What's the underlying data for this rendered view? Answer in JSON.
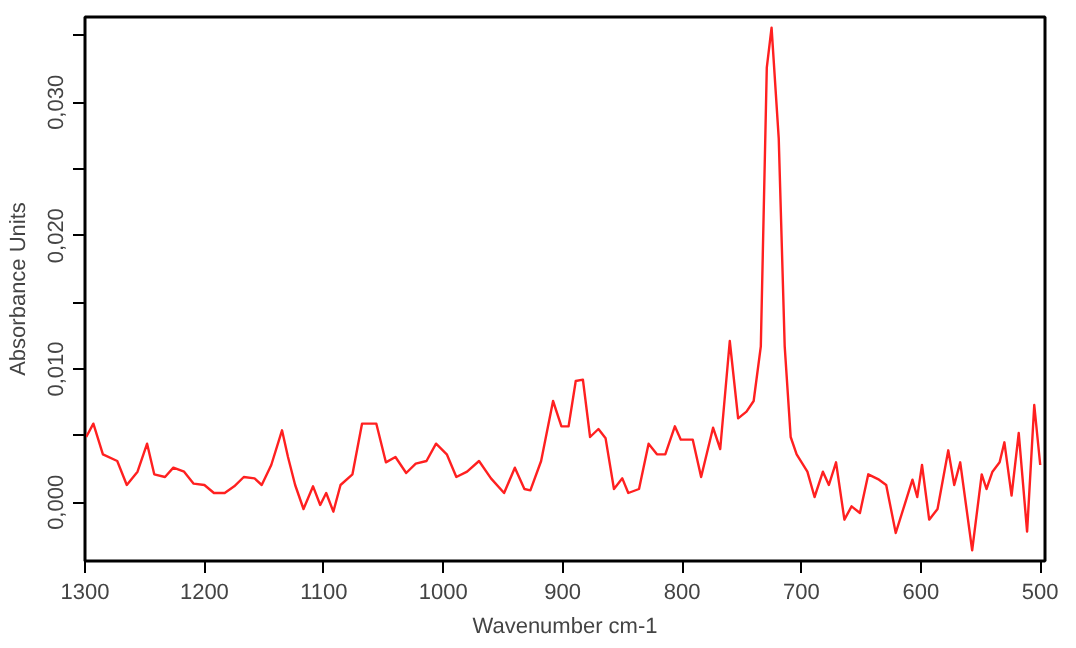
{
  "chart_data": {
    "type": "line",
    "xlabel": "Wavenumber cm-1",
    "ylabel": "Absorbance Units",
    "xlim": [
      1300,
      496
    ],
    "xticks": [
      1300,
      1200,
      1100,
      1000,
      900,
      800,
      700,
      600,
      500
    ],
    "ylim": [
      -0.0044,
      0.0364
    ],
    "yticks": [
      {
        "value": 0,
        "label": "0,000"
      },
      {
        "value": 0.005,
        "label": null
      },
      {
        "value": 0.01,
        "label": "0,010"
      },
      {
        "value": 0.015,
        "label": null
      },
      {
        "value": 0.02,
        "label": "0,020"
      },
      {
        "value": 0.025,
        "label": null
      },
      {
        "value": 0.03,
        "label": "0,030"
      },
      {
        "value": 0.035,
        "label": null
      }
    ],
    "grid": false,
    "series": [
      {
        "color": "#ff2020",
        "x": [
          1299,
          1293,
          1285,
          1273,
          1265,
          1256,
          1248,
          1242,
          1233,
          1226,
          1217,
          1209,
          1200,
          1192,
          1183,
          1175,
          1167,
          1158,
          1152,
          1144,
          1135,
          1130,
          1124,
          1117,
          1109,
          1103,
          1098,
          1092,
          1086,
          1076,
          1068,
          1056,
          1048,
          1040,
          1031,
          1023,
          1014,
          1006,
          997,
          989,
          980,
          970,
          960,
          949,
          940,
          932,
          927,
          918,
          908,
          901,
          895,
          889,
          883,
          877,
          870,
          864,
          857,
          850,
          845,
          836,
          828,
          821,
          814,
          806,
          801,
          791,
          784,
          774,
          768,
          760,
          753,
          746,
          740,
          734,
          729,
          725,
          719,
          714,
          709,
          704,
          695,
          689,
          682,
          677,
          671,
          664,
          658,
          651,
          644,
          635,
          629,
          621,
          614,
          607,
          603,
          599,
          593,
          586,
          577,
          572,
          567,
          557,
          549,
          545,
          540,
          534,
          530,
          524,
          518,
          511,
          505,
          500
        ],
        "values": [
          0.0049,
          0.0059,
          0.0036,
          0.0031,
          0.0013,
          0.0023,
          0.0044,
          0.0021,
          0.0019,
          0.0026,
          0.0023,
          0.0014,
          0.0013,
          0.0007,
          0.0007,
          0.0012,
          0.0019,
          0.0018,
          0.0013,
          0.0028,
          0.0054,
          0.0034,
          0.0013,
          -0.0005,
          0.0012,
          -0.0002,
          0.0007,
          -0.0007,
          0.0013,
          0.0021,
          0.0059,
          0.0059,
          0.003,
          0.0034,
          0.0022,
          0.0029,
          0.0031,
          0.0044,
          0.0036,
          0.0019,
          0.0023,
          0.0031,
          0.0018,
          0.0007,
          0.0026,
          0.001,
          0.0009,
          0.0031,
          0.0076,
          0.0057,
          0.0057,
          0.0091,
          0.0092,
          0.0049,
          0.0055,
          0.0048,
          0.001,
          0.0018,
          0.0007,
          0.001,
          0.0044,
          0.0036,
          0.0036,
          0.0057,
          0.0047,
          0.0047,
          0.0019,
          0.0056,
          0.004,
          0.0121,
          0.0063,
          0.0068,
          0.0076,
          0.0117,
          0.0326,
          0.0356,
          0.0273,
          0.0117,
          0.0049,
          0.0036,
          0.0023,
          0.0004,
          0.0023,
          0.0013,
          0.003,
          -0.0013,
          -0.0003,
          -0.0008,
          0.0021,
          0.0017,
          0.0013,
          -0.0023,
          -0.0003,
          0.0017,
          0.0004,
          0.0028,
          -0.0013,
          -0.0005,
          0.0039,
          0.0013,
          0.003,
          -0.0036,
          0.0021,
          0.001,
          0.0023,
          0.003,
          0.0045,
          0.0005,
          0.0052,
          -0.0022,
          0.0073,
          0.0028
        ]
      }
    ]
  }
}
